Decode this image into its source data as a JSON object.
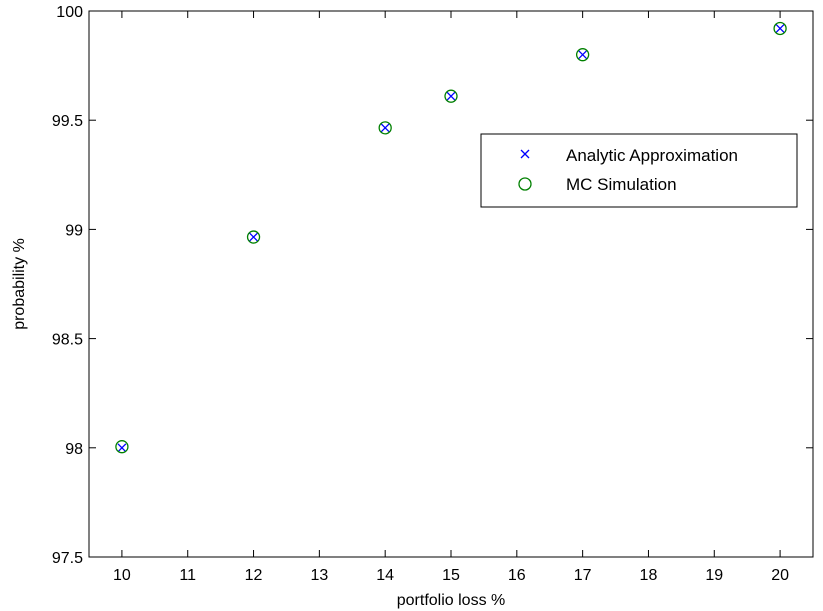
{
  "chart_data": {
    "type": "scatter",
    "title": "",
    "xlabel": "portfolio loss %",
    "ylabel": "probability %",
    "xlim": [
      9.5,
      20.5
    ],
    "ylim": [
      97.5,
      100
    ],
    "xticks": [
      10,
      11,
      12,
      13,
      14,
      15,
      16,
      17,
      18,
      19,
      20
    ],
    "yticks": [
      97.5,
      98,
      98.5,
      99,
      99.5,
      100
    ],
    "ytick_labels": [
      "97.5",
      "98",
      "98.5",
      "99",
      "99.5",
      "100"
    ],
    "grid": false,
    "legend_position": "upper-right",
    "series": [
      {
        "name": "Analytic Approximation",
        "marker": "x",
        "color": "#0000ff",
        "x": [
          10,
          12,
          14,
          15,
          17,
          20
        ],
        "y": [
          98.0,
          98.965,
          99.465,
          99.61,
          99.8,
          99.92
        ]
      },
      {
        "name": "MC Simulation",
        "marker": "o",
        "color": "#008000",
        "x": [
          10,
          12,
          14,
          15,
          17,
          20
        ],
        "y": [
          98.005,
          98.965,
          99.465,
          99.61,
          99.8,
          99.92
        ]
      }
    ]
  }
}
